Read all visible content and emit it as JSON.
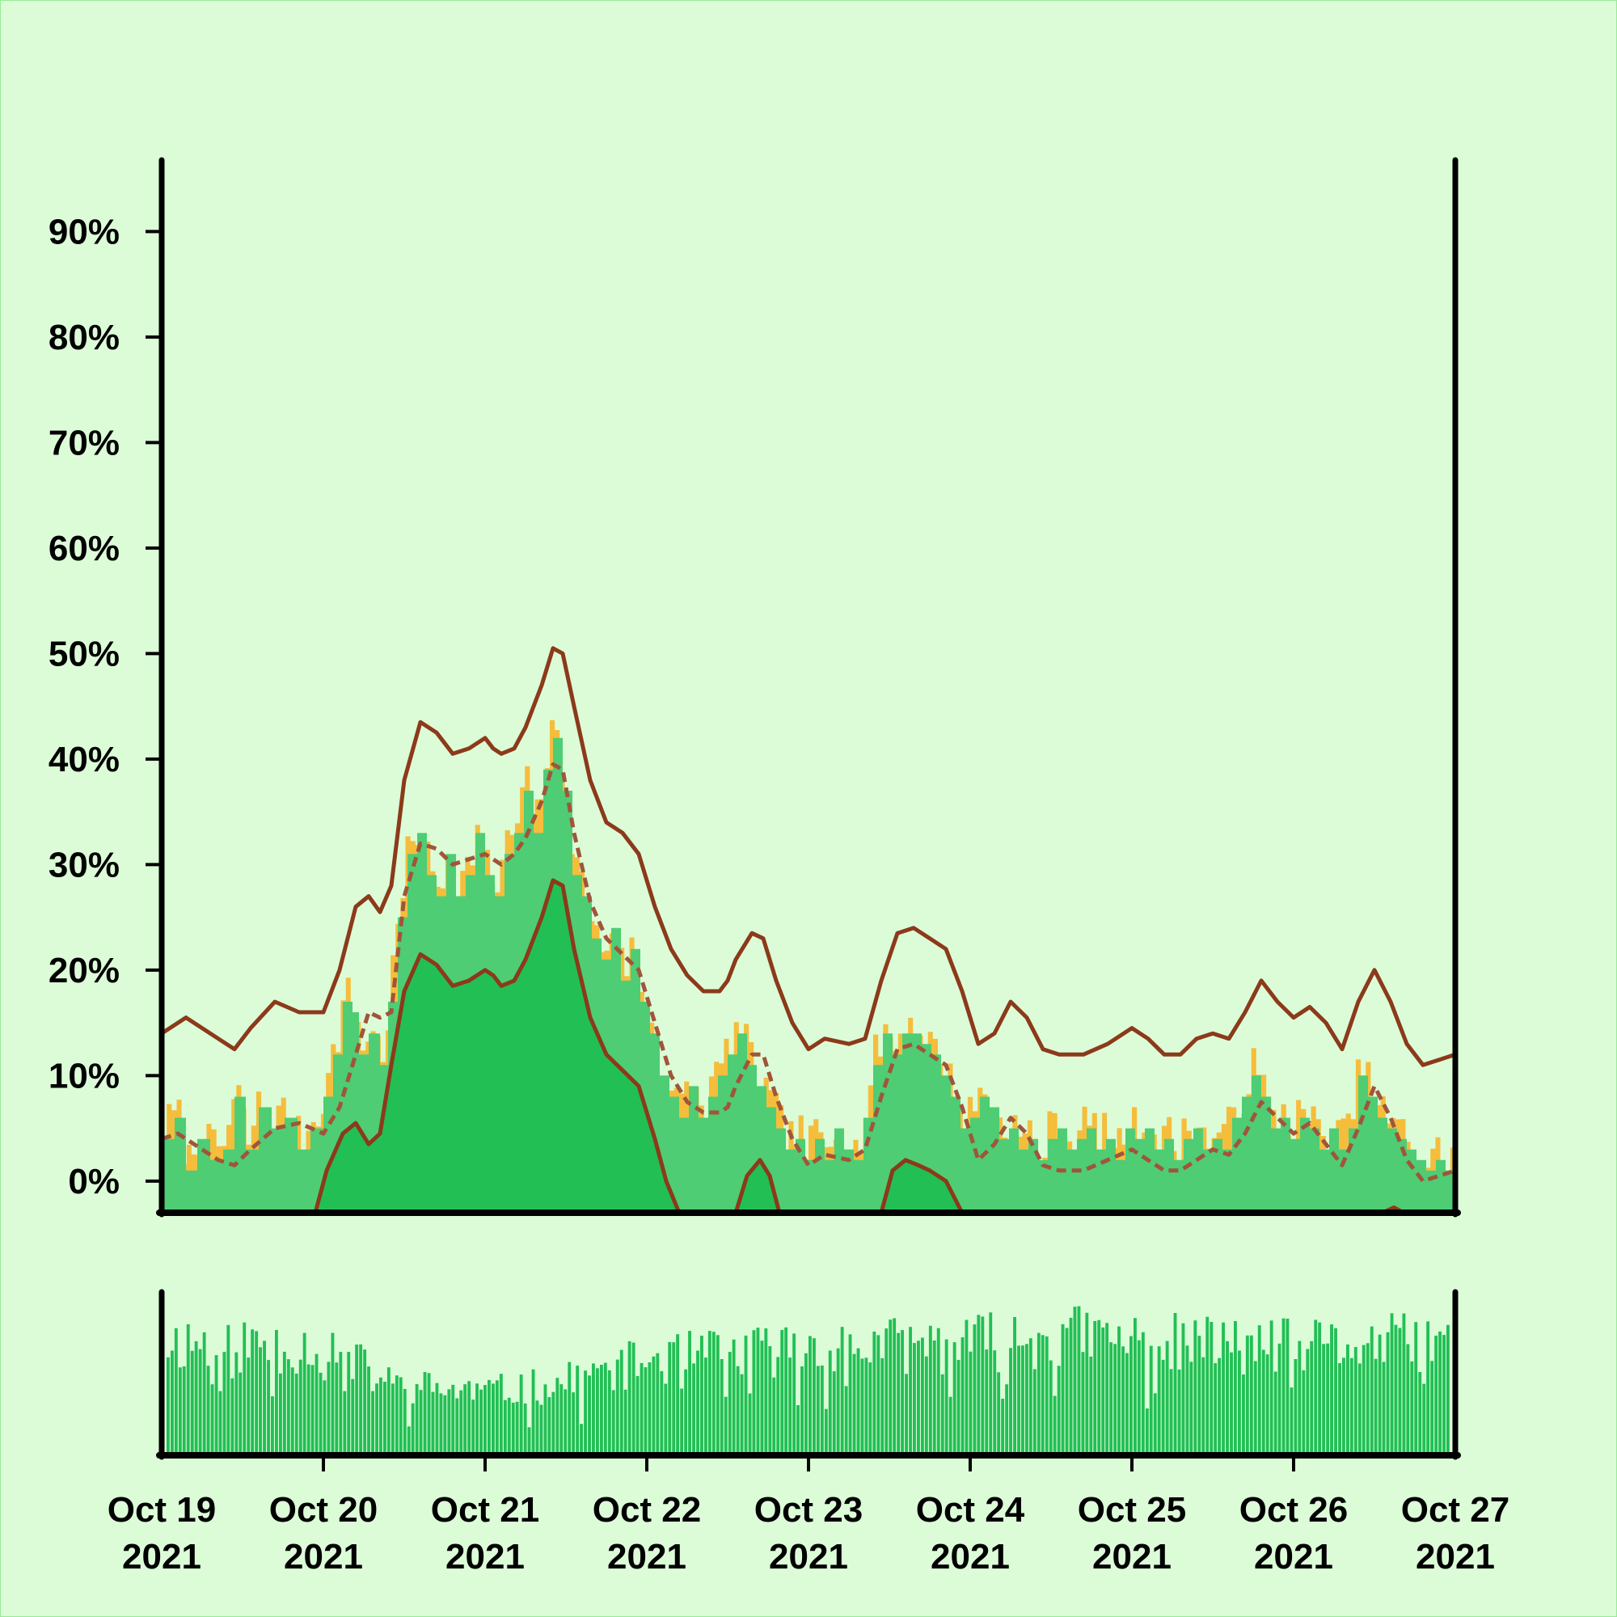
{
  "chart_data": {
    "type": "area",
    "x_range": [
      "2021-10-19T00:00",
      "2021-10-27T00:00"
    ],
    "x_ticks": [
      {
        "line1": "Oct 19",
        "line2": "2021",
        "date": "2021-10-19"
      },
      {
        "line1": "Oct 20",
        "line2": "2021",
        "date": "2021-10-20"
      },
      {
        "line1": "Oct 21",
        "line2": "2021",
        "date": "2021-10-21"
      },
      {
        "line1": "Oct 22",
        "line2": "2021",
        "date": "2021-10-22"
      },
      {
        "line1": "Oct 23",
        "line2": "2021",
        "date": "2021-10-23"
      },
      {
        "line1": "Oct 24",
        "line2": "2021",
        "date": "2021-10-24"
      },
      {
        "line1": "Oct 25",
        "line2": "2021",
        "date": "2021-10-25"
      },
      {
        "line1": "Oct 26",
        "line2": "2021",
        "date": "2021-10-26"
      },
      {
        "line1": "Oct 27",
        "line2": "2021",
        "date": "2021-10-27"
      }
    ],
    "y_ticks": [
      {
        "label": "0%",
        "value": 0
      },
      {
        "label": "10%",
        "value": 10
      },
      {
        "label": "20%",
        "value": 20
      },
      {
        "label": "30%",
        "value": 30
      },
      {
        "label": "40%",
        "value": 40
      },
      {
        "label": "50%",
        "value": 50
      },
      {
        "label": "60%",
        "value": 60
      },
      {
        "label": "70%",
        "value": 70
      },
      {
        "label": "80%",
        "value": 80
      },
      {
        "label": "90%",
        "value": 90
      }
    ],
    "ylim": [
      -3,
      97
    ],
    "grid": false,
    "colors": {
      "background": "#dcfcd8",
      "raw_fill": "#f5bd3c",
      "smooth_fill": "#4ecd74",
      "band_fill": "#22bf55",
      "line": "#8b3a1a",
      "volume": "#22bf55"
    },
    "series": {
      "upper_bound": [
        [
          0,
          14
        ],
        [
          0.15,
          15.5
        ],
        [
          0.3,
          14
        ],
        [
          0.45,
          12.5
        ],
        [
          0.55,
          14.5
        ],
        [
          0.7,
          17
        ],
        [
          0.85,
          16
        ],
        [
          1,
          16
        ],
        [
          1.1,
          20
        ],
        [
          1.2,
          26
        ],
        [
          1.28,
          27
        ],
        [
          1.35,
          25.5
        ],
        [
          1.42,
          28
        ],
        [
          1.5,
          38
        ],
        [
          1.6,
          43.5
        ],
        [
          1.7,
          42.5
        ],
        [
          1.8,
          40.5
        ],
        [
          1.9,
          41
        ],
        [
          2,
          42
        ],
        [
          2.05,
          41
        ],
        [
          2.1,
          40.5
        ],
        [
          2.18,
          41
        ],
        [
          2.25,
          43
        ],
        [
          2.35,
          47
        ],
        [
          2.42,
          50.5
        ],
        [
          2.48,
          50
        ],
        [
          2.55,
          45
        ],
        [
          2.65,
          38
        ],
        [
          2.75,
          34
        ],
        [
          2.85,
          33
        ],
        [
          2.95,
          31
        ],
        [
          3.05,
          26
        ],
        [
          3.15,
          22
        ],
        [
          3.25,
          19.5
        ],
        [
          3.35,
          18
        ],
        [
          3.45,
          18
        ],
        [
          3.5,
          19
        ],
        [
          3.55,
          21
        ],
        [
          3.65,
          23.5
        ],
        [
          3.72,
          23
        ],
        [
          3.8,
          19
        ],
        [
          3.9,
          15
        ],
        [
          4,
          12.5
        ],
        [
          4.1,
          13.5
        ],
        [
          4.25,
          13
        ],
        [
          4.35,
          13.5
        ],
        [
          4.45,
          19
        ],
        [
          4.55,
          23.5
        ],
        [
          4.65,
          24
        ],
        [
          4.75,
          23
        ],
        [
          4.85,
          22
        ],
        [
          4.95,
          18
        ],
        [
          5.05,
          13
        ],
        [
          5.15,
          14
        ],
        [
          5.25,
          17
        ],
        [
          5.35,
          15.5
        ],
        [
          5.45,
          12.5
        ],
        [
          5.55,
          12
        ],
        [
          5.7,
          12
        ],
        [
          5.85,
          13
        ],
        [
          6,
          14.5
        ],
        [
          6.1,
          13.5
        ],
        [
          6.2,
          12
        ],
        [
          6.3,
          12
        ],
        [
          6.4,
          13.5
        ],
        [
          6.5,
          14
        ],
        [
          6.6,
          13.5
        ],
        [
          6.7,
          16
        ],
        [
          6.8,
          19
        ],
        [
          6.9,
          17
        ],
        [
          7,
          15.5
        ],
        [
          7.1,
          16.5
        ],
        [
          7.2,
          15
        ],
        [
          7.3,
          12.5
        ],
        [
          7.4,
          17
        ],
        [
          7.5,
          20
        ],
        [
          7.6,
          17
        ],
        [
          7.7,
          13
        ],
        [
          7.8,
          11
        ],
        [
          8,
          12
        ]
      ],
      "mid_line": [
        [
          0,
          4
        ],
        [
          0.1,
          4.5
        ],
        [
          0.25,
          3
        ],
        [
          0.35,
          2
        ],
        [
          0.45,
          1.5
        ],
        [
          0.55,
          3
        ],
        [
          0.7,
          5
        ],
        [
          0.85,
          5.5
        ],
        [
          1,
          4.5
        ],
        [
          1.1,
          7
        ],
        [
          1.2,
          12
        ],
        [
          1.28,
          16
        ],
        [
          1.35,
          15.5
        ],
        [
          1.42,
          16
        ],
        [
          1.5,
          27
        ],
        [
          1.6,
          32
        ],
        [
          1.7,
          31.5
        ],
        [
          1.8,
          30
        ],
        [
          1.9,
          30.5
        ],
        [
          2,
          31
        ],
        [
          2.05,
          30.5
        ],
        [
          2.1,
          30
        ],
        [
          2.18,
          31
        ],
        [
          2.25,
          32.5
        ],
        [
          2.35,
          36
        ],
        [
          2.42,
          39.5
        ],
        [
          2.48,
          39
        ],
        [
          2.55,
          33
        ],
        [
          2.65,
          26.5
        ],
        [
          2.75,
          23
        ],
        [
          2.85,
          21.5
        ],
        [
          2.95,
          20
        ],
        [
          3.05,
          15
        ],
        [
          3.15,
          10
        ],
        [
          3.25,
          7.5
        ],
        [
          3.35,
          6.5
        ],
        [
          3.45,
          6.5
        ],
        [
          3.5,
          7
        ],
        [
          3.55,
          9
        ],
        [
          3.65,
          12
        ],
        [
          3.72,
          12
        ],
        [
          3.8,
          8
        ],
        [
          3.9,
          4
        ],
        [
          4,
          1.5
        ],
        [
          4.1,
          2.5
        ],
        [
          4.25,
          2
        ],
        [
          4.35,
          3
        ],
        [
          4.45,
          8
        ],
        [
          4.55,
          12.5
        ],
        [
          4.65,
          13
        ],
        [
          4.75,
          12
        ],
        [
          4.85,
          11
        ],
        [
          4.95,
          7
        ],
        [
          5.05,
          2
        ],
        [
          5.15,
          3.5
        ],
        [
          5.25,
          6
        ],
        [
          5.35,
          4.5
        ],
        [
          5.45,
          1.5
        ],
        [
          5.55,
          1
        ],
        [
          5.7,
          1
        ],
        [
          5.85,
          2
        ],
        [
          6,
          3
        ],
        [
          6.1,
          2
        ],
        [
          6.2,
          1
        ],
        [
          6.3,
          1
        ],
        [
          6.4,
          2
        ],
        [
          6.5,
          3
        ],
        [
          6.6,
          2.5
        ],
        [
          6.7,
          4.5
        ],
        [
          6.8,
          7.5
        ],
        [
          6.9,
          6
        ],
        [
          7,
          4.5
        ],
        [
          7.1,
          5.5
        ],
        [
          7.2,
          3.5
        ],
        [
          7.3,
          1.5
        ],
        [
          7.4,
          5
        ],
        [
          7.5,
          9
        ],
        [
          7.6,
          6
        ],
        [
          7.7,
          2
        ],
        [
          7.8,
          0
        ],
        [
          8,
          1
        ]
      ],
      "lower_bound": [
        [
          0.95,
          -3
        ],
        [
          1.02,
          1
        ],
        [
          1.12,
          4.5
        ],
        [
          1.2,
          5.5
        ],
        [
          1.28,
          3.5
        ],
        [
          1.35,
          4.5
        ],
        [
          1.42,
          11
        ],
        [
          1.5,
          18
        ],
        [
          1.6,
          21.5
        ],
        [
          1.7,
          20.5
        ],
        [
          1.8,
          18.5
        ],
        [
          1.9,
          19
        ],
        [
          2,
          20
        ],
        [
          2.05,
          19.5
        ],
        [
          2.1,
          18.5
        ],
        [
          2.18,
          19
        ],
        [
          2.25,
          21
        ],
        [
          2.35,
          25
        ],
        [
          2.42,
          28.5
        ],
        [
          2.48,
          28
        ],
        [
          2.55,
          22
        ],
        [
          2.65,
          15.5
        ],
        [
          2.75,
          12
        ],
        [
          2.85,
          10.5
        ],
        [
          2.95,
          9
        ],
        [
          3.05,
          4
        ],
        [
          3.12,
          0
        ],
        [
          3.2,
          -3
        ],
        [
          3.55,
          -3
        ],
        [
          3.62,
          0.5
        ],
        [
          3.7,
          2
        ],
        [
          3.76,
          0.5
        ],
        [
          3.82,
          -3
        ],
        [
          4.45,
          -3
        ],
        [
          4.52,
          1
        ],
        [
          4.6,
          2
        ],
        [
          4.68,
          1.5
        ],
        [
          4.75,
          1
        ],
        [
          4.85,
          0
        ],
        [
          4.95,
          -3
        ],
        [
          7.55,
          -3
        ],
        [
          7.62,
          -2.5
        ],
        [
          7.68,
          -3
        ]
      ],
      "smooth_area": [
        [
          0,
          4
        ],
        [
          0.08,
          6
        ],
        [
          0.15,
          1
        ],
        [
          0.22,
          4
        ],
        [
          0.3,
          2
        ],
        [
          0.38,
          3
        ],
        [
          0.45,
          8
        ],
        [
          0.52,
          3
        ],
        [
          0.6,
          7
        ],
        [
          0.68,
          5
        ],
        [
          0.76,
          6
        ],
        [
          0.84,
          3
        ],
        [
          0.92,
          5
        ],
        [
          1,
          8
        ],
        [
          1.06,
          12
        ],
        [
          1.12,
          17
        ],
        [
          1.18,
          16
        ],
        [
          1.22,
          12
        ],
        [
          1.28,
          14
        ],
        [
          1.35,
          11
        ],
        [
          1.4,
          17
        ],
        [
          1.46,
          25
        ],
        [
          1.52,
          31
        ],
        [
          1.58,
          33
        ],
        [
          1.64,
          29
        ],
        [
          1.7,
          27
        ],
        [
          1.76,
          31
        ],
        [
          1.82,
          27
        ],
        [
          1.88,
          29
        ],
        [
          1.94,
          33
        ],
        [
          2,
          29
        ],
        [
          2.06,
          27
        ],
        [
          2.12,
          31
        ],
        [
          2.18,
          33
        ],
        [
          2.24,
          37
        ],
        [
          2.3,
          33
        ],
        [
          2.36,
          39
        ],
        [
          2.42,
          42
        ],
        [
          2.48,
          37
        ],
        [
          2.54,
          29
        ],
        [
          2.6,
          27
        ],
        [
          2.66,
          23
        ],
        [
          2.72,
          21
        ],
        [
          2.78,
          24
        ],
        [
          2.84,
          19
        ],
        [
          2.9,
          22
        ],
        [
          2.96,
          17
        ],
        [
          3.02,
          14
        ],
        [
          3.08,
          10
        ],
        [
          3.14,
          8
        ],
        [
          3.2,
          6
        ],
        [
          3.26,
          9
        ],
        [
          3.32,
          6
        ],
        [
          3.38,
          8
        ],
        [
          3.44,
          10
        ],
        [
          3.5,
          12
        ],
        [
          3.56,
          14
        ],
        [
          3.62,
          11
        ],
        [
          3.68,
          9
        ],
        [
          3.74,
          7
        ],
        [
          3.8,
          5
        ],
        [
          3.86,
          3
        ],
        [
          3.92,
          4
        ],
        [
          3.98,
          2
        ],
        [
          4.04,
          4
        ],
        [
          4.1,
          2
        ],
        [
          4.16,
          5
        ],
        [
          4.22,
          3
        ],
        [
          4.28,
          2
        ],
        [
          4.34,
          6
        ],
        [
          4.4,
          11
        ],
        [
          4.46,
          14
        ],
        [
          4.52,
          12
        ],
        [
          4.58,
          14
        ],
        [
          4.64,
          14
        ],
        [
          4.7,
          13
        ],
        [
          4.76,
          12
        ],
        [
          4.82,
          10
        ],
        [
          4.88,
          8
        ],
        [
          4.94,
          5
        ],
        [
          5,
          6
        ],
        [
          5.06,
          8
        ],
        [
          5.12,
          7
        ],
        [
          5.18,
          4
        ],
        [
          5.24,
          5
        ],
        [
          5.3,
          3
        ],
        [
          5.36,
          4
        ],
        [
          5.42,
          2
        ],
        [
          5.48,
          4
        ],
        [
          5.54,
          5
        ],
        [
          5.6,
          3
        ],
        [
          5.66,
          4
        ],
        [
          5.72,
          5
        ],
        [
          5.78,
          3
        ],
        [
          5.84,
          4
        ],
        [
          5.9,
          2
        ],
        [
          5.96,
          5
        ],
        [
          6.02,
          4
        ],
        [
          6.08,
          5
        ],
        [
          6.14,
          3
        ],
        [
          6.2,
          4
        ],
        [
          6.26,
          2
        ],
        [
          6.32,
          4
        ],
        [
          6.38,
          5
        ],
        [
          6.44,
          3
        ],
        [
          6.5,
          4
        ],
        [
          6.56,
          3
        ],
        [
          6.62,
          6
        ],
        [
          6.68,
          8
        ],
        [
          6.74,
          10
        ],
        [
          6.8,
          8
        ],
        [
          6.86,
          5
        ],
        [
          6.92,
          6
        ],
        [
          6.98,
          4
        ],
        [
          7.04,
          6
        ],
        [
          7.1,
          5
        ],
        [
          7.16,
          3
        ],
        [
          7.22,
          5
        ],
        [
          7.28,
          3
        ],
        [
          7.34,
          5
        ],
        [
          7.4,
          10
        ],
        [
          7.46,
          8
        ],
        [
          7.52,
          6
        ],
        [
          7.58,
          5
        ],
        [
          7.64,
          4
        ],
        [
          7.7,
          3
        ],
        [
          7.76,
          2
        ],
        [
          7.82,
          1
        ],
        [
          7.88,
          2
        ],
        [
          7.94,
          1
        ],
        [
          8,
          2
        ]
      ],
      "raw_area_seed": 7,
      "raw_area_jitter": 4.5,
      "volume": {
        "seed": 11,
        "bars": 320,
        "profile": [
          [
            0,
            0.9
          ],
          [
            1,
            0.85
          ],
          [
            1.4,
            0.55
          ],
          [
            2,
            0.5
          ],
          [
            2.4,
            0.55
          ],
          [
            3,
            0.75
          ],
          [
            4,
            0.85
          ],
          [
            5,
            0.88
          ],
          [
            5.6,
            0.95
          ],
          [
            6,
            0.9
          ],
          [
            7,
            0.85
          ],
          [
            8,
            0.9
          ]
        ]
      }
    }
  }
}
